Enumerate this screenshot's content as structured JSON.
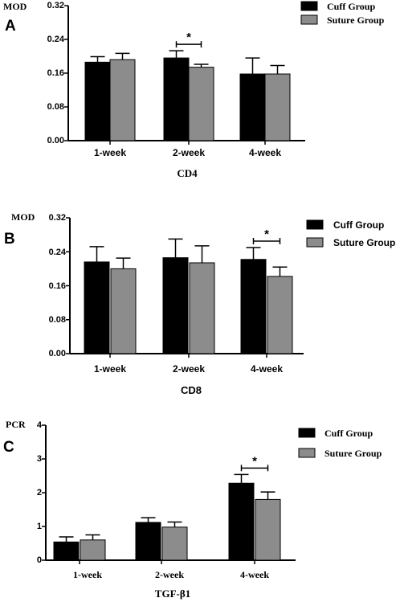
{
  "chart_data": [
    {
      "type": "bar",
      "panel": "A",
      "title": "",
      "ylabel": "MOD",
      "xlabel": "CD4",
      "ylim": [
        0,
        0.32
      ],
      "yticks": [
        "0.00",
        "0.08",
        "0.16",
        "0.24",
        "0.32"
      ],
      "categories": [
        "1-week",
        "2-week",
        "4-week"
      ],
      "series": [
        {
          "name": "Cuff Group",
          "color": "#000000",
          "values": [
            0.186,
            0.196,
            0.158
          ],
          "errors": [
            0.013,
            0.017,
            0.038
          ]
        },
        {
          "name": "Suture Group",
          "color": "#8c8c8c",
          "values": [
            0.192,
            0.174,
            0.158
          ],
          "errors": [
            0.015,
            0.007,
            0.02
          ]
        }
      ],
      "significance": [
        {
          "category": "2-week",
          "label": "*"
        }
      ],
      "legend": "top-right",
      "grid": false
    },
    {
      "type": "bar",
      "panel": "B",
      "title": "",
      "ylabel": "MOD",
      "xlabel": "CD8",
      "ylim": [
        0,
        0.32
      ],
      "yticks": [
        "0.00",
        "0.08",
        "0.16",
        "0.24",
        "0.32"
      ],
      "categories": [
        "1-week",
        "2-week",
        "4-week"
      ],
      "series": [
        {
          "name": "Cuff Group",
          "color": "#000000",
          "values": [
            0.216,
            0.226,
            0.222
          ],
          "errors": [
            0.036,
            0.044,
            0.028
          ]
        },
        {
          "name": "Suture Group",
          "color": "#8c8c8c",
          "values": [
            0.2,
            0.214,
            0.182
          ],
          "errors": [
            0.025,
            0.04,
            0.022
          ]
        }
      ],
      "significance": [
        {
          "category": "4-week",
          "label": "*"
        }
      ],
      "legend": "right",
      "grid": false
    },
    {
      "type": "bar",
      "panel": "C",
      "title": "",
      "ylabel": "PCR",
      "xlabel": "TGF-β1",
      "ylim": [
        0,
        4
      ],
      "yticks": [
        "0",
        "1",
        "2",
        "3",
        "4"
      ],
      "categories": [
        "1-week",
        "2-week",
        "4-week"
      ],
      "series": [
        {
          "name": "Cuff Group",
          "color": "#000000",
          "values": [
            0.54,
            1.12,
            2.28
          ],
          "errors": [
            0.15,
            0.14,
            0.26
          ]
        },
        {
          "name": "Suture Group",
          "color": "#8c8c8c",
          "values": [
            0.6,
            0.98,
            1.8
          ],
          "errors": [
            0.15,
            0.15,
            0.22
          ]
        }
      ],
      "significance": [
        {
          "category": "4-week",
          "label": "*"
        }
      ],
      "legend": "top-right",
      "grid": false
    }
  ]
}
